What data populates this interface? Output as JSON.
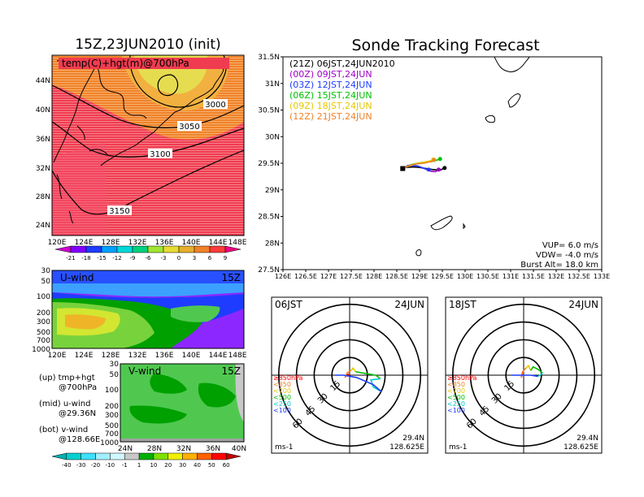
{
  "main_title": "15Z,23JUN2010 (init)",
  "forecast_title": "Sonde Tracking Forecast",
  "top_map": {
    "label": "temp(C)+hgt(m)@700hPa",
    "lat_ticks": [
      "44N",
      "40N",
      "36N",
      "32N",
      "28N",
      "24N"
    ],
    "lon_ticks": [
      "120E",
      "124E",
      "128E",
      "132E",
      "136E",
      "140E",
      "144E",
      "148E"
    ],
    "contour_labels": [
      "3000",
      "3050",
      "3100",
      "3150"
    ]
  },
  "temp_colorbar": {
    "labels": [
      "-21",
      "-18",
      "-15",
      "-12",
      "-9",
      "-6",
      "-3",
      "0",
      "3",
      "6",
      "9"
    ],
    "colors": [
      "#d000d0",
      "#8000ff",
      "#1e3cff",
      "#00a0ff",
      "#00d8d8",
      "#00d080",
      "#a0e632",
      "#e6dc32",
      "#e6af2d",
      "#f08228",
      "#fa3c3c",
      "#f00082"
    ]
  },
  "u_panel": {
    "label": "U-wind",
    "time": "15Z",
    "p_ticks": [
      "30",
      "50",
      "100",
      "200",
      "300",
      "500",
      "700",
      "1000"
    ],
    "lon_ticks": [
      "120E",
      "124E",
      "128E",
      "132E",
      "136E",
      "140E",
      "144E",
      "148E"
    ]
  },
  "v_panel": {
    "label": "V-wind",
    "time": "15Z",
    "p_ticks": [
      "30",
      "50",
      "100",
      "200",
      "300",
      "500",
      "700",
      "1000"
    ],
    "lat_ticks": [
      "24N",
      "28N",
      "32N",
      "36N",
      "40N"
    ]
  },
  "wind_colorbar": {
    "labels": [
      "-40",
      "-30",
      "-20",
      "-10",
      "-1",
      "1",
      "10",
      "20",
      "30",
      "40",
      "50",
      "60"
    ],
    "colors": [
      "#00b0b0",
      "#00d0d0",
      "#40e0ff",
      "#a0f0ff",
      "#d0f8ff",
      "#c8c8c8",
      "#00b000",
      "#80e000",
      "#f0f000",
      "#ffb000",
      "#ff6000",
      "#ff0000",
      "#c00000"
    ]
  },
  "notes": {
    "up1": "(up) tmp+hgt",
    "up2": "@700hPa",
    "mid1": "(mid) u-wind",
    "mid2": "@29.36N",
    "bot1": "(bot) v-wind",
    "bot2": "@128.66E"
  },
  "track_map": {
    "lat_ticks": [
      "31.5N",
      "31N",
      "30.5N",
      "30N",
      "29.5N",
      "29N",
      "28.5N",
      "28N",
      "27.5N"
    ],
    "lon_ticks": [
      "126E",
      "126.5E",
      "127E",
      "127.5E",
      "128E",
      "128.5E",
      "129E",
      "129.5E",
      "130E",
      "130.5E",
      "131E",
      "131.5E",
      "132E",
      "132.5E",
      "133E"
    ],
    "legend": [
      {
        "text": "(21Z)  06JST,24JUN2010",
        "color": "#000000"
      },
      {
        "text": "(00Z)  09JST,24JUN",
        "color": "#a000c8"
      },
      {
        "text": "(03Z)  12JST,24JUN",
        "color": "#1e3cff"
      },
      {
        "text": "(06Z)  15JST,24JUN",
        "color": "#00c000"
      },
      {
        "text": "(09Z)  18JST,24JUN",
        "color": "#e6c800"
      },
      {
        "text": "(12Z)  21JST,24JUN",
        "color": "#f08228"
      }
    ],
    "params": {
      "vup": "VUP=  6.0  m/s",
      "vdw": "VDW= -4.0  m/s",
      "burst": "Burst Alt=  18.0  km"
    }
  },
  "hodo_left": {
    "time": "06JST",
    "date": "24JUN",
    "lat": "29.4N",
    "lon": "128.625E",
    "unit": "ms-1",
    "ring_labels": [
      "15",
      "30",
      "45",
      "60"
    ]
  },
  "hodo_right": {
    "time": "18JST",
    "date": "24JUN",
    "lat": "29.4N",
    "lon": "128.625E",
    "unit": "ms-1",
    "ring_labels": [
      "15",
      "30",
      "45",
      "60"
    ]
  },
  "hodo_legend": [
    {
      "text": "≥850hPa",
      "color": "#ff0000"
    },
    {
      "text": "<850",
      "color": "#f08228"
    },
    {
      "text": "<700",
      "color": "#e6c800"
    },
    {
      "text": "<500",
      "color": "#00c000"
    },
    {
      "text": "<250",
      "color": "#00c8c8"
    },
    {
      "text": "<100",
      "color": "#1e3cff"
    }
  ],
  "chart_data": [
    {
      "type": "line",
      "title": "Sonde Tracking Forecast",
      "xlabel": "",
      "ylabel": "",
      "xlim": [
        126,
        133
      ],
      "ylim": [
        27.5,
        31.5
      ],
      "series": [
        {
          "name": "(21Z)  06JST,24JUN2010",
          "x": [
            128.63,
            128.7,
            128.85,
            129.0,
            129.15,
            129.3,
            129.45,
            129.55
          ],
          "y": [
            29.4,
            29.42,
            29.43,
            29.42,
            29.4,
            29.38,
            29.37,
            29.41
          ]
        },
        {
          "name": "(00Z)  09JST,24JUN",
          "x": [
            128.63,
            128.75,
            128.95,
            129.1,
            129.25,
            129.35,
            129.42
          ],
          "y": [
            29.4,
            29.46,
            29.45,
            29.4,
            29.35,
            29.34,
            29.38
          ]
        },
        {
          "name": "(03Z)  12JST,24JUN",
          "x": [
            128.63,
            128.8,
            128.95,
            129.05,
            129.15,
            129.2
          ],
          "y": [
            29.4,
            29.46,
            29.45,
            29.42,
            29.39,
            29.38
          ]
        },
        {
          "name": "(06Z)  15JST,24JUN",
          "x": [
            128.63,
            128.8,
            128.95,
            129.1,
            129.25,
            129.35,
            129.45
          ],
          "y": [
            29.4,
            29.47,
            29.5,
            29.52,
            29.53,
            29.55,
            29.58
          ]
        },
        {
          "name": "(09Z)  18JST,24JUN",
          "x": [
            128.63,
            128.8,
            128.95,
            129.1,
            129.25,
            129.3
          ],
          "y": [
            29.4,
            29.46,
            29.5,
            29.52,
            29.55,
            29.57
          ]
        },
        {
          "name": "(12Z)  21JST,24JUN",
          "x": [
            128.63,
            128.8,
            128.95,
            129.1,
            129.25,
            129.32
          ],
          "y": [
            29.4,
            29.46,
            29.49,
            29.5,
            29.53,
            29.56
          ]
        }
      ]
    },
    {
      "type": "line",
      "title": "06JST 24JUN hodograph",
      "xlabel": "",
      "ylabel": "",
      "unit": "ms-1",
      "xlim": [
        -66,
        66
      ],
      "ylim": [
        -66,
        66
      ],
      "series": [
        {
          "name": "≥850hPa",
          "u": [
            0,
            -2,
            -4
          ],
          "v": [
            0,
            1,
            -2
          ]
        },
        {
          "name": "<850",
          "u": [
            -4,
            -2,
            1
          ],
          "v": [
            -2,
            2,
            4
          ]
        },
        {
          "name": "<700",
          "u": [
            1,
            3,
            5
          ],
          "v": [
            4,
            6,
            3
          ]
        },
        {
          "name": "<500",
          "u": [
            5,
            10,
            22,
            26
          ],
          "v": [
            3,
            2,
            0,
            -3
          ]
        },
        {
          "name": "<250",
          "u": [
            26,
            18,
            20,
            27
          ],
          "v": [
            -3,
            -4,
            -10,
            -14
          ]
        },
        {
          "name": "<100",
          "u": [
            27,
            20,
            6,
            -5,
            -12
          ],
          "v": [
            -14,
            -8,
            -2,
            0,
            0
          ]
        }
      ]
    },
    {
      "type": "line",
      "title": "18JST 24JUN hodograph",
      "xlabel": "",
      "ylabel": "",
      "unit": "ms-1",
      "xlim": [
        -66,
        66
      ],
      "ylim": [
        -66,
        66
      ],
      "series": [
        {
          "name": "≥850hPa",
          "u": [
            0,
            -1,
            -2
          ],
          "v": [
            0,
            2,
            -2
          ]
        },
        {
          "name": "<850",
          "u": [
            -2,
            0,
            2
          ],
          "v": [
            -2,
            4,
            6
          ]
        },
        {
          "name": "<700",
          "u": [
            2,
            4,
            6
          ],
          "v": [
            6,
            8,
            4
          ]
        },
        {
          "name": "<500",
          "u": [
            6,
            8,
            12,
            16
          ],
          "v": [
            4,
            7,
            5,
            2
          ]
        },
        {
          "name": "<250",
          "u": [
            16,
            14,
            12
          ],
          "v": [
            2,
            0,
            -1
          ]
        },
        {
          "name": "<100",
          "u": [
            12,
            6,
            -2,
            -10
          ],
          "v": [
            -1,
            0,
            0,
            0
          ]
        }
      ]
    }
  ]
}
